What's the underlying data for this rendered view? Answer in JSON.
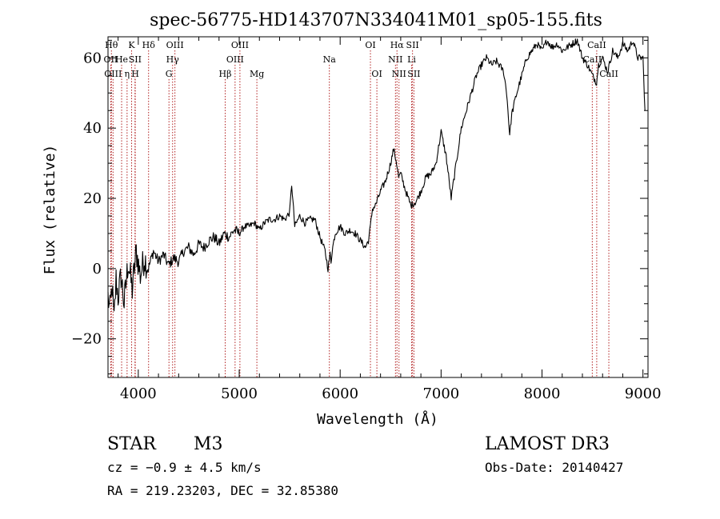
{
  "chart_data": {
    "type": "line",
    "title": "spec-56775-HD143707N334041M01_sp05-155.fits",
    "xlabel": "Wavelength (Å)",
    "ylabel": "Flux (relative)",
    "xlim": [
      3700,
      9050
    ],
    "ylim": [
      -31,
      66
    ],
    "xticks": [
      {
        "value": 4000,
        "label": "4000"
      },
      {
        "value": 5000,
        "label": "5000"
      },
      {
        "value": 6000,
        "label": "6000"
      },
      {
        "value": 7000,
        "label": "7000"
      },
      {
        "value": 8000,
        "label": "8000"
      },
      {
        "value": 9000,
        "label": "9000"
      }
    ],
    "yticks": [
      {
        "value": -20,
        "label": "−20"
      },
      {
        "value": 0,
        "label": "0"
      },
      {
        "value": 20,
        "label": "20"
      },
      {
        "value": 40,
        "label": "40"
      },
      {
        "value": 60,
        "label": "60"
      }
    ],
    "series": [
      {
        "name": "spectrum",
        "x": [
          3700,
          3720,
          3740,
          3760,
          3780,
          3800,
          3830,
          3860,
          3900,
          3940,
          3980,
          4020,
          4060,
          4100,
          4150,
          4200,
          4250,
          4300,
          4350,
          4400,
          4450,
          4500,
          4550,
          4600,
          4650,
          4700,
          4750,
          4800,
          4850,
          4900,
          4950,
          5000,
          5050,
          5100,
          5150,
          5200,
          5250,
          5300,
          5350,
          5400,
          5450,
          5500,
          5520,
          5550,
          5600,
          5650,
          5700,
          5750,
          5800,
          5850,
          5880,
          5900,
          5910,
          5920,
          5950,
          6000,
          6050,
          6100,
          6150,
          6200,
          6250,
          6280,
          6300,
          6320,
          6350,
          6400,
          6450,
          6500,
          6530,
          6560,
          6580,
          6600,
          6650,
          6700,
          6750,
          6800,
          6850,
          6900,
          6950,
          7000,
          7050,
          7080,
          7100,
          7150,
          7200,
          7250,
          7300,
          7350,
          7400,
          7450,
          7500,
          7550,
          7600,
          7620,
          7650,
          7680,
          7700,
          7750,
          7800,
          7850,
          7900,
          7950,
          8000,
          8050,
          8100,
          8150,
          8200,
          8250,
          8300,
          8350,
          8400,
          8450,
          8500,
          8540,
          8560,
          8600,
          8650,
          8700,
          8750,
          8800,
          8850,
          8900,
          8950,
          9000,
          9020
        ],
        "y": [
          -8,
          -12,
          -5,
          -15,
          -3,
          -8,
          -2,
          -10,
          2,
          -6,
          5,
          -2,
          3,
          0,
          5,
          2,
          4,
          1,
          3,
          2,
          5,
          6,
          4,
          7,
          6,
          8,
          9,
          7,
          10,
          9,
          11,
          10,
          12,
          12,
          13,
          11,
          13,
          14,
          14,
          15,
          14,
          16,
          24,
          12,
          15,
          13,
          14,
          14,
          9,
          5,
          0,
          4,
          2,
          5,
          10,
          12,
          10,
          11,
          10,
          8,
          6,
          8,
          12,
          17,
          18,
          22,
          25,
          30,
          34,
          30,
          26,
          27,
          22,
          18,
          19,
          22,
          26,
          27,
          30,
          39,
          32,
          25,
          20,
          30,
          40,
          45,
          50,
          55,
          58,
          60,
          58,
          59,
          57,
          56,
          50,
          38,
          44,
          50,
          55,
          60,
          62,
          64,
          62,
          65,
          63,
          64,
          62,
          63,
          64,
          65,
          60,
          58,
          55,
          53,
          58,
          60,
          56,
          62,
          60,
          64,
          62,
          65,
          60,
          60,
          45
        ]
      }
    ],
    "line_markers": [
      {
        "wavelength": 3734,
        "label": "Hθ",
        "row": 0
      },
      {
        "wavelength": 3727,
        "label": "OII",
        "row": 1
      },
      {
        "wavelength": 3750,
        "label": "OIII",
        "row": 2
      },
      {
        "wavelength": 3835,
        "label": "He",
        "row": 1
      },
      {
        "wavelength": 3889,
        "label": "η",
        "row": 2
      },
      {
        "wavelength": 3934,
        "label": "K",
        "row": 0
      },
      {
        "wavelength": 3968,
        "label": "SII",
        "row": 1
      },
      {
        "wavelength": 3970,
        "label": "H",
        "row": 2
      },
      {
        "wavelength": 4102,
        "label": "Hδ",
        "row": 0
      },
      {
        "wavelength": 4340,
        "label": "Hγ",
        "row": 1
      },
      {
        "wavelength": 4363,
        "label": "OIII",
        "row": 0
      },
      {
        "wavelength": 4304,
        "label": "G",
        "row": 2
      },
      {
        "wavelength": 4861,
        "label": "Hβ",
        "row": 2
      },
      {
        "wavelength": 4959,
        "label": "OIII",
        "row": 1
      },
      {
        "wavelength": 5007,
        "label": "OIII",
        "row": 0
      },
      {
        "wavelength": 5175,
        "label": "Mg",
        "row": 2
      },
      {
        "wavelength": 5893,
        "label": "Na",
        "row": 1
      },
      {
        "wavelength": 6300,
        "label": "OI",
        "row": 0
      },
      {
        "wavelength": 6364,
        "label": "OI",
        "row": 2
      },
      {
        "wavelength": 6548,
        "label": "NII",
        "row": 1
      },
      {
        "wavelength": 6563,
        "label": "Hα",
        "row": 0
      },
      {
        "wavelength": 6583,
        "label": "NII",
        "row": 2
      },
      {
        "wavelength": 6708,
        "label": "Li",
        "row": 1
      },
      {
        "wavelength": 6717,
        "label": "SII",
        "row": 0
      },
      {
        "wavelength": 6731,
        "label": "SII",
        "row": 2
      },
      {
        "wavelength": 8498,
        "label": "CaII",
        "row": 1
      },
      {
        "wavelength": 8542,
        "label": "CaII",
        "row": 0
      },
      {
        "wavelength": 8662,
        "label": "CaII",
        "row": 2
      }
    ]
  },
  "info": {
    "class_label": "STAR",
    "subclass": "M3",
    "survey": "LAMOST DR3",
    "cz": "cz = −0.9 ± 4.5 km/s",
    "obs_date": "Obs-Date: 20140427",
    "coords": "RA = 219.23203, DEC =  32.85380"
  },
  "colors": {
    "spectrum": "#000000",
    "marker": "#b22222",
    "axis": "#000000"
  }
}
